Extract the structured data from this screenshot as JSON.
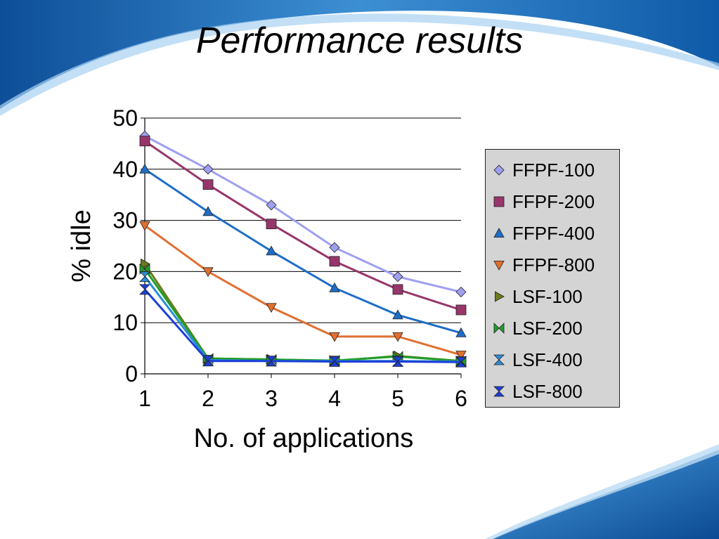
{
  "slide": {
    "title": "Performance results"
  },
  "colors": {
    "background_wave": "#1f6fb3",
    "slide_surface": "#ffffff",
    "legend_fill": "#d4d4d4"
  },
  "chart_data": {
    "type": "line",
    "title": "",
    "xlabel": "No. of applications",
    "ylabel": "% idle",
    "x": [
      1,
      2,
      3,
      4,
      5,
      6
    ],
    "xticks": [
      "1",
      "2",
      "3",
      "4",
      "5",
      "6"
    ],
    "yticks": [
      "0",
      "10",
      "20",
      "30",
      "40",
      "50"
    ],
    "ylim": [
      0,
      50
    ],
    "grid": "horizontal",
    "legend_position": "right",
    "series": [
      {
        "name": "FFPF-100",
        "marker": "diamond",
        "color": "#9f9ff0",
        "values": [
          46.5,
          40,
          33,
          24.7,
          19,
          16
        ]
      },
      {
        "name": "FFPF-200",
        "marker": "square",
        "color": "#97366a",
        "values": [
          45.5,
          37,
          29.3,
          22,
          16.5,
          12.5
        ]
      },
      {
        "name": "FFPF-400",
        "marker": "triangle-up",
        "color": "#1e6ec6",
        "values": [
          40,
          31.7,
          24,
          16.8,
          11.5,
          8
        ]
      },
      {
        "name": "FFPF-800",
        "marker": "triangle-down",
        "color": "#e06f30",
        "values": [
          29,
          20,
          13,
          7.3,
          7.3,
          3.7
        ]
      },
      {
        "name": "LSF-100",
        "marker": "triangle-right",
        "color": "#6e7a1c",
        "values": [
          21.5,
          3,
          2.8,
          2.5,
          3.5,
          2.5
        ]
      },
      {
        "name": "LSF-200",
        "marker": "bowtie",
        "color": "#1f9e2a",
        "values": [
          20.5,
          3,
          2.8,
          2.6,
          3.4,
          2.5
        ]
      },
      {
        "name": "LSF-400",
        "marker": "hourglass",
        "color": "#2a8ed6",
        "values": [
          19,
          2.7,
          2.5,
          2.5,
          2.5,
          2.4
        ]
      },
      {
        "name": "LSF-800",
        "marker": "hourglass",
        "color": "#1b3fd8",
        "values": [
          16.5,
          2.5,
          2.5,
          2.4,
          2.4,
          2.3
        ]
      }
    ]
  }
}
